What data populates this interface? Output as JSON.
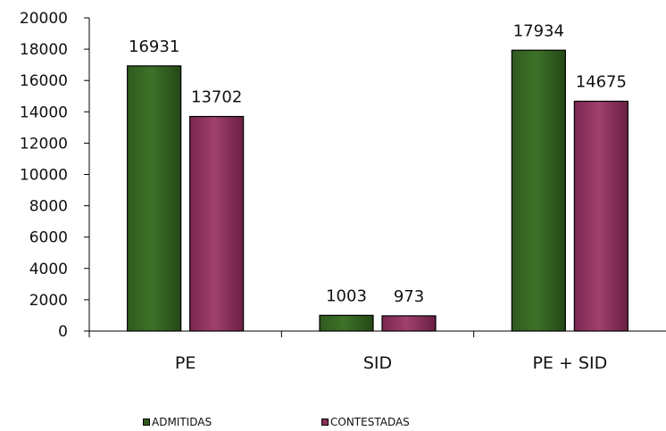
{
  "chart_data": {
    "type": "bar",
    "categories": [
      "PE",
      "SID",
      "PE + SID"
    ],
    "series": [
      {
        "name": "ADMITIDAS",
        "values": [
          16931,
          1003,
          17934
        ],
        "color": "#2f5a1f"
      },
      {
        "name": "CONTESTADAS",
        "values": [
          13702,
          973,
          14675
        ],
        "color": "#8a2f59"
      }
    ],
    "ylim": [
      0,
      20000
    ],
    "yticks": [
      0,
      2000,
      4000,
      6000,
      8000,
      10000,
      12000,
      14000,
      16000,
      18000,
      20000
    ],
    "grid": false,
    "legend_position": "bottom"
  }
}
